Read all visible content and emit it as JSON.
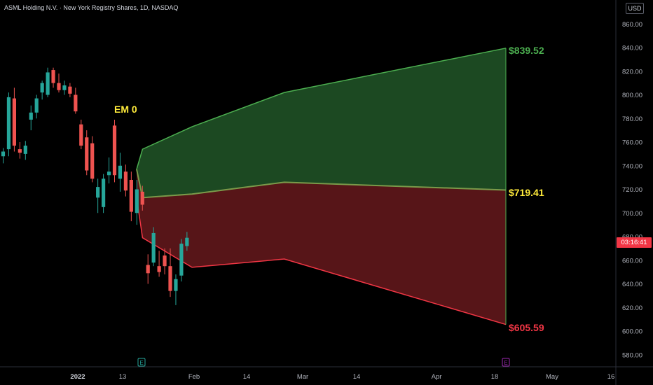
{
  "title": "ASML Holding N.V. · New York Registry Shares, 1D, NASDAQ",
  "currency": "USD",
  "countdown": "03:16:41",
  "colors": {
    "background": "#000000",
    "up": "#26a69a",
    "down": "#ef5350",
    "green_zone": "#1e4d24",
    "green_line": "#4caf50",
    "red_zone": "#5c1619",
    "red_line": "#f23645",
    "em_label": "#ffeb3b",
    "upper_label": "#4caf50",
    "mid_label": "#ffeb3b",
    "lower_label": "#f23645"
  },
  "chart_data": {
    "type": "candlestick",
    "y_ticks": [
      "580.00",
      "600.00",
      "620.00",
      "640.00",
      "660.00",
      "680.00",
      "700.00",
      "720.00",
      "740.00",
      "760.00",
      "780.00",
      "800.00",
      "820.00",
      "840.00",
      "860.00"
    ],
    "x_ticks": [
      "2022",
      "13",
      "Feb",
      "14",
      "Mar",
      "14",
      "Apr",
      "18",
      "May",
      "16"
    ],
    "ylim": [
      575,
      872
    ],
    "annotation": "EM 0",
    "events": [
      {
        "label": "E",
        "color": "#26a69a"
      },
      {
        "label": "E",
        "color": "#9c27b0"
      }
    ],
    "candles": [
      {
        "o": 748,
        "h": 755,
        "l": 742,
        "c": 752
      },
      {
        "o": 754,
        "h": 802,
        "l": 748,
        "c": 798
      },
      {
        "o": 797,
        "h": 806,
        "l": 752,
        "c": 757
      },
      {
        "o": 754,
        "h": 760,
        "l": 746,
        "c": 751
      },
      {
        "o": 750,
        "h": 761,
        "l": 745,
        "c": 757
      },
      {
        "o": 779,
        "h": 791,
        "l": 770,
        "c": 785
      },
      {
        "o": 785,
        "h": 800,
        "l": 780,
        "c": 797
      },
      {
        "o": 802,
        "h": 812,
        "l": 796,
        "c": 810
      },
      {
        "o": 800,
        "h": 823,
        "l": 798,
        "c": 819
      },
      {
        "o": 821,
        "h": 823,
        "l": 806,
        "c": 810
      },
      {
        "o": 810,
        "h": 818,
        "l": 802,
        "c": 804
      },
      {
        "o": 804,
        "h": 812,
        "l": 800,
        "c": 808
      },
      {
        "o": 807,
        "h": 810,
        "l": 798,
        "c": 801
      },
      {
        "o": 800,
        "h": 806,
        "l": 784,
        "c": 786
      },
      {
        "o": 775,
        "h": 779,
        "l": 754,
        "c": 757
      },
      {
        "o": 764,
        "h": 770,
        "l": 732,
        "c": 736
      },
      {
        "o": 759,
        "h": 765,
        "l": 726,
        "c": 729
      },
      {
        "o": 713,
        "h": 729,
        "l": 700,
        "c": 722
      },
      {
        "o": 705,
        "h": 733,
        "l": 700,
        "c": 729
      },
      {
        "o": 732,
        "h": 747,
        "l": 725,
        "c": 735
      },
      {
        "o": 774,
        "h": 779,
        "l": 726,
        "c": 732
      },
      {
        "o": 729,
        "h": 751,
        "l": 718,
        "c": 740
      },
      {
        "o": 735,
        "h": 741,
        "l": 714,
        "c": 719
      },
      {
        "o": 728,
        "h": 735,
        "l": 693,
        "c": 701
      },
      {
        "o": 700,
        "h": 728,
        "l": 690,
        "c": 720
      },
      {
        "o": 718,
        "h": 723,
        "l": 702,
        "c": 707
      },
      {
        "o": 656,
        "h": 665,
        "l": 640,
        "c": 649
      },
      {
        "o": 658,
        "h": 688,
        "l": 655,
        "c": 683
      },
      {
        "o": 655,
        "h": 668,
        "l": 646,
        "c": 650
      },
      {
        "o": 664,
        "h": 670,
        "l": 648,
        "c": 655
      },
      {
        "o": 655,
        "h": 670,
        "l": 629,
        "c": 634
      },
      {
        "o": 634,
        "h": 648,
        "l": 622,
        "c": 644
      },
      {
        "o": 647,
        "h": 678,
        "l": 642,
        "c": 674
      },
      {
        "o": 672,
        "h": 684,
        "l": 668,
        "c": 679
      }
    ],
    "expected_move": {
      "upper": {
        "label": "$839.52",
        "points": [
          [
            0,
            737
          ],
          [
            0.8,
            754
          ],
          [
            7.5,
            773
          ],
          [
            20,
            802
          ],
          [
            50,
            839.52
          ]
        ]
      },
      "mid": {
        "label": "$719.41",
        "points": [
          [
            0,
            737
          ],
          [
            0.8,
            713
          ],
          [
            7.5,
            716
          ],
          [
            20,
            726
          ],
          [
            50,
            719.41
          ]
        ]
      },
      "lower": {
        "label": "$605.59",
        "points": [
          [
            0,
            713
          ],
          [
            0.8,
            679
          ],
          [
            7.5,
            654
          ],
          [
            20,
            661
          ],
          [
            50,
            605.59
          ]
        ]
      }
    }
  }
}
